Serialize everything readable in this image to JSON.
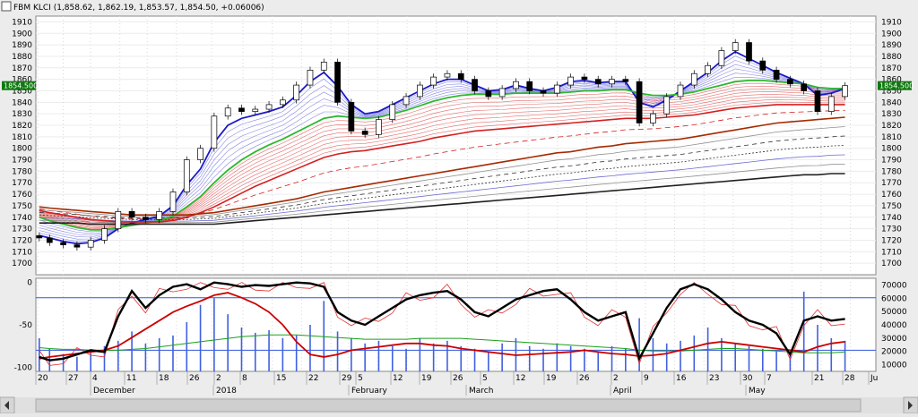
{
  "header": {
    "text": "FBM KLCI (1,858.62, 1,862.19, 1,853.57, 1,854.50, +0.06006)"
  },
  "chart_data": [
    {
      "type": "line",
      "subtype": "candlestick-with-moving-average-ribbons",
      "title": "FBM KLCI",
      "ylim": [
        1690,
        1915
      ],
      "yticks": [
        1700,
        1710,
        1720,
        1730,
        1740,
        1750,
        1760,
        1770,
        1780,
        1790,
        1800,
        1810,
        1820,
        1830,
        1840,
        1850,
        1860,
        1870,
        1880,
        1890,
        1900,
        1910
      ],
      "last_price_label": "1854.500",
      "last_price": 1854.5,
      "x": [
        1,
        4,
        8,
        12,
        16,
        20,
        24,
        28,
        32,
        36,
        40,
        44,
        48,
        52,
        56,
        60,
        64,
        68,
        72,
        76,
        80,
        84,
        88,
        92,
        96,
        100,
        104,
        108,
        112,
        116,
        120,
        124,
        128,
        132,
        136,
        140,
        144,
        148,
        152,
        156,
        160,
        164,
        168,
        172,
        176,
        180,
        184,
        188,
        192,
        196,
        200,
        204,
        208,
        212,
        216,
        220,
        224,
        228,
        232,
        236
      ],
      "close": [
        1722,
        1718,
        1716,
        1714,
        1720,
        1730,
        1745,
        1740,
        1738,
        1745,
        1762,
        1790,
        1800,
        1828,
        1835,
        1832,
        1834,
        1838,
        1842,
        1855,
        1868,
        1875,
        1840,
        1815,
        1812,
        1825,
        1838,
        1845,
        1855,
        1862,
        1865,
        1860,
        1850,
        1845,
        1852,
        1858,
        1850,
        1848,
        1855,
        1862,
        1860,
        1856,
        1860,
        1858,
        1822,
        1830,
        1845,
        1855,
        1865,
        1872,
        1885,
        1892,
        1876,
        1868,
        1860,
        1856,
        1850,
        1832,
        1845,
        1854.5
      ],
      "series": [
        {
          "name": "",
          "color": "#1a1ac8",
          "values": [
            1724,
            1722,
            1719,
            1717,
            1718,
            1722,
            1730,
            1735,
            1738,
            1741,
            1750,
            1768,
            1782,
            1805,
            1820,
            1826,
            1829,
            1832,
            1836,
            1846,
            1858,
            1866,
            1854,
            1838,
            1830,
            1832,
            1838,
            1844,
            1850,
            1856,
            1860,
            1860,
            1855,
            1850,
            1851,
            1855,
            1852,
            1850,
            1853,
            1858,
            1859,
            1857,
            1858,
            1858,
            1840,
            1836,
            1842,
            1850,
            1858,
            1866,
            1876,
            1884,
            1878,
            1872,
            1866,
            1861,
            1856,
            1846,
            1848,
            1852
          ]
        },
        {
          "name": "",
          "color": "#2db82d",
          "values": [
            1740,
            1737,
            1734,
            1731,
            1729,
            1729,
            1731,
            1733,
            1735,
            1737,
            1741,
            1749,
            1758,
            1770,
            1781,
            1790,
            1797,
            1803,
            1808,
            1814,
            1820,
            1826,
            1828,
            1827,
            1826,
            1827,
            1830,
            1833,
            1837,
            1841,
            1844,
            1846,
            1847,
            1847,
            1847,
            1848,
            1848,
            1848,
            1848,
            1849,
            1850,
            1850,
            1851,
            1851,
            1848,
            1846,
            1846,
            1847,
            1849,
            1852,
            1855,
            1858,
            1859,
            1859,
            1858,
            1857,
            1856,
            1853,
            1852,
            1852
          ]
        },
        {
          "name": "",
          "color": "#d42020",
          "values": [
            1746,
            1744,
            1742,
            1740,
            1738,
            1737,
            1736,
            1736,
            1736,
            1736,
            1737,
            1740,
            1744,
            1749,
            1755,
            1761,
            1767,
            1772,
            1777,
            1782,
            1787,
            1792,
            1795,
            1797,
            1798,
            1800,
            1802,
            1804,
            1806,
            1809,
            1811,
            1813,
            1815,
            1816,
            1817,
            1818,
            1819,
            1820,
            1821,
            1822,
            1823,
            1824,
            1825,
            1826,
            1826,
            1826,
            1827,
            1828,
            1829,
            1831,
            1833,
            1835,
            1836,
            1837,
            1838,
            1838,
            1838,
            1838,
            1838,
            1838
          ]
        },
        {
          "name": "",
          "color": "#a52a00",
          "values": [
            1749,
            1748,
            1747,
            1746,
            1745,
            1744,
            1743,
            1742,
            1742,
            1742,
            1742,
            1742,
            1743,
            1744,
            1746,
            1748,
            1750,
            1752,
            1754,
            1756,
            1759,
            1762,
            1764,
            1766,
            1768,
            1770,
            1772,
            1774,
            1776,
            1778,
            1780,
            1782,
            1784,
            1786,
            1788,
            1790,
            1792,
            1794,
            1796,
            1797,
            1799,
            1801,
            1802,
            1804,
            1805,
            1806,
            1807,
            1808,
            1810,
            1812,
            1814,
            1816,
            1818,
            1820,
            1822,
            1823,
            1824,
            1825,
            1826,
            1827
          ]
        },
        {
          "name": "",
          "color": "#202020",
          "values": [
            1735,
            1735,
            1735,
            1735,
            1734,
            1734,
            1734,
            1734,
            1734,
            1734,
            1734,
            1734,
            1734,
            1734,
            1735,
            1736,
            1737,
            1738,
            1739,
            1740,
            1741,
            1742,
            1743,
            1744,
            1745,
            1746,
            1747,
            1748,
            1749,
            1750,
            1751,
            1752,
            1753,
            1754,
            1755,
            1756,
            1757,
            1758,
            1759,
            1760,
            1761,
            1762,
            1763,
            1764,
            1765,
            1766,
            1767,
            1768,
            1769,
            1770,
            1771,
            1772,
            1773,
            1774,
            1775,
            1776,
            1777,
            1777,
            1778,
            1778
          ]
        }
      ]
    },
    {
      "type": "line",
      "subtype": "oscillator-with-volume-bars",
      "ylim": [
        -105,
        5
      ],
      "yticks_left": [
        0,
        -50,
        -100
      ],
      "y2lim": [
        5000,
        75000
      ],
      "yticks_right": [
        10000,
        20000,
        30000,
        40000,
        50000,
        60000,
        70000
      ],
      "hlines": [
        -18,
        -80
      ],
      "x": [
        1,
        4,
        8,
        12,
        16,
        20,
        24,
        28,
        32,
        36,
        40,
        44,
        48,
        52,
        56,
        60,
        64,
        68,
        72,
        76,
        80,
        84,
        88,
        92,
        96,
        100,
        104,
        108,
        112,
        116,
        120,
        124,
        128,
        132,
        136,
        140,
        144,
        148,
        152,
        156,
        160,
        164,
        168,
        172,
        176,
        180,
        184,
        188,
        192,
        196,
        200,
        204,
        208,
        212,
        216,
        220,
        224,
        228,
        232,
        236
      ],
      "series": [
        {
          "name": "",
          "color": "#000000",
          "values": [
            -88,
            -92,
            -90,
            -85,
            -80,
            -82,
            -40,
            -10,
            -30,
            -15,
            -5,
            -2,
            -8,
            0,
            -2,
            -5,
            -3,
            -4,
            -2,
            0,
            -1,
            -5,
            -35,
            -45,
            -50,
            -40,
            -30,
            -20,
            -15,
            -12,
            -10,
            -20,
            -35,
            -40,
            -30,
            -20,
            -15,
            -10,
            -8,
            -20,
            -35,
            -45,
            -40,
            -35,
            -90,
            -60,
            -30,
            -8,
            -2,
            -8,
            -20,
            -35,
            -45,
            -50,
            -60,
            -85,
            -45,
            -40,
            -45,
            -43
          ]
        },
        {
          "name": "",
          "color": "#cc0000",
          "values": [
            -90,
            -88,
            -86,
            -84,
            -82,
            -80,
            -75,
            -65,
            -55,
            -45,
            -35,
            -28,
            -22,
            -15,
            -12,
            -18,
            -25,
            -35,
            -50,
            -70,
            -85,
            -88,
            -85,
            -80,
            -78,
            -76,
            -74,
            -72,
            -72,
            -74,
            -75,
            -78,
            -80,
            -82,
            -84,
            -86,
            -85,
            -84,
            -83,
            -82,
            -80,
            -82,
            -84,
            -85,
            -87,
            -86,
            -84,
            -80,
            -76,
            -72,
            -70,
            -72,
            -74,
            -76,
            -78,
            -80,
            -82,
            -76,
            -72,
            -70
          ]
        },
        {
          "name": "",
          "color": "#1aa01a",
          "values": [
            -77,
            -78,
            -79,
            -79,
            -80,
            -80,
            -80,
            -79,
            -78,
            -76,
            -74,
            -72,
            -70,
            -68,
            -66,
            -64,
            -63,
            -62,
            -62,
            -62,
            -63,
            -64,
            -65,
            -66,
            -67,
            -67,
            -67,
            -67,
            -66,
            -66,
            -66,
            -66,
            -67,
            -68,
            -69,
            -70,
            -71,
            -72,
            -73,
            -74,
            -75,
            -76,
            -77,
            -78,
            -80,
            -81,
            -81,
            -81,
            -80,
            -79,
            -78,
            -78,
            -79,
            -80,
            -81,
            -82,
            -83,
            -83,
            -83,
            -82
          ]
        }
      ],
      "volume": [
        30000,
        22000,
        18000,
        16000,
        20000,
        24000,
        28000,
        35000,
        26000,
        30000,
        32000,
        42000,
        55000,
        60000,
        48000,
        38000,
        34000,
        36000,
        30000,
        32000,
        40000,
        58000,
        35000,
        30000,
        26000,
        28000,
        24000,
        22000,
        30000,
        26000,
        28000,
        24000,
        22000,
        20000,
        26000,
        30000,
        24000,
        22000,
        26000,
        24000,
        22000,
        20000,
        24000,
        22000,
        45000,
        30000,
        26000,
        28000,
        32000,
        38000,
        30000,
        26000,
        24000,
        22000,
        20000,
        18000,
        65000,
        40000,
        30000,
        28000
      ]
    }
  ],
  "xaxis": {
    "day_labels": [
      "20",
      "27",
      "4",
      "11",
      "18",
      "26",
      "2",
      "8",
      "15",
      "22",
      "29",
      "5",
      "12",
      "19",
      "26",
      "5",
      "12",
      "19",
      "26",
      "2",
      "9",
      "16",
      "23",
      "30",
      "7",
      "21",
      "28",
      "Ju"
    ],
    "month_labels": [
      "December",
      "2018",
      "February",
      "March",
      "April",
      "May"
    ]
  }
}
